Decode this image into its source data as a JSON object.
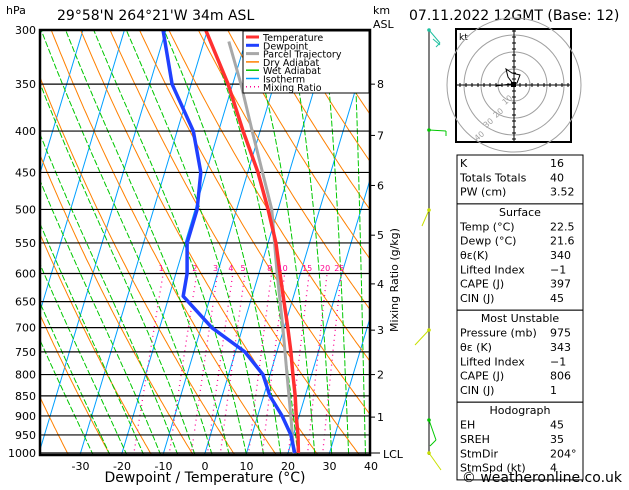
{
  "header": {
    "hpa_label": "hPa",
    "location": "29°58'N  264°21'W  34m  ASL",
    "km_label": "km",
    "asl_label": "ASL",
    "datetime": "07.11.2022  12GMT  (Base: 12)"
  },
  "legend": [
    {
      "label": "Temperature",
      "color": "#ff3030"
    },
    {
      "label": "Dewpoint",
      "color": "#2040ff"
    },
    {
      "label": "Parcel Trajectory",
      "color": "#a8a8a8"
    },
    {
      "label": "Dry Adiabat",
      "color": "#ff8000"
    },
    {
      "label": "Wet Adiabat",
      "color": "#00c800"
    },
    {
      "label": "Isotherm",
      "color": "#00a0ff"
    },
    {
      "label": "Mixing Ratio",
      "color": "#ff0090"
    }
  ],
  "chart_data": {
    "type": "line",
    "subtype": "skew-t log-p",
    "xlabel": "Dewpoint / Temperature (°C)",
    "ylabel": "hPa",
    "right_label": "Mixing Ratio (g/kg)",
    "xticks": [
      -30,
      -20,
      -10,
      0,
      10,
      20,
      30,
      40
    ],
    "xlim": [
      -40,
      40
    ],
    "ylim": [
      1000,
      300
    ],
    "pressure_ticks": [
      300,
      350,
      400,
      450,
      500,
      550,
      600,
      650,
      700,
      750,
      800,
      850,
      900,
      950,
      1000
    ],
    "km_ticks": [
      {
        "label": "1",
        "p": 903
      },
      {
        "label": "2",
        "p": 800
      },
      {
        "label": "3",
        "p": 705
      },
      {
        "label": "4",
        "p": 618
      },
      {
        "label": "5",
        "p": 538
      },
      {
        "label": "6",
        "p": 467
      },
      {
        "label": "7",
        "p": 405
      },
      {
        "label": "8",
        "p": 350
      }
    ],
    "lcl_label": "LCL",
    "mixing_ratio_labels": [
      "1",
      "2",
      "3",
      "4",
      "5",
      "8",
      "10",
      "15",
      "20",
      "25"
    ],
    "mixing_ratio_values": [
      1,
      2,
      3,
      4,
      5,
      8,
      10,
      15,
      20,
      25
    ],
    "series": [
      {
        "name": "Temperature",
        "color": "#ff3030",
        "p": [
          1000,
          950,
          900,
          850,
          800,
          750,
          700,
          650,
          600,
          550,
          500,
          450,
          400,
          350,
          300
        ],
        "t": [
          22.5,
          21.1,
          19.3,
          17.6,
          15.5,
          13.4,
          10.9,
          8.1,
          5.1,
          1.9,
          -2.4,
          -7.5,
          -14.1,
          -21.1,
          -30.4
        ]
      },
      {
        "name": "Dewpoint",
        "color": "#2040ff",
        "p": [
          1000,
          950,
          900,
          850,
          800,
          750,
          700,
          640,
          600,
          550,
          500,
          450,
          400,
          350,
          300
        ],
        "t": [
          21.6,
          19.4,
          15.9,
          11.5,
          8.3,
          2.3,
          -7.4,
          -16.6,
          -17.3,
          -19.5,
          -19.5,
          -21.3,
          -26.1,
          -34.6,
          -40.7
        ]
      },
      {
        "name": "Parcel Trajectory",
        "color": "#a8a8a8",
        "p": [
          1000,
          900,
          800,
          700,
          600,
          500,
          400,
          350,
          310
        ],
        "t": [
          21.4,
          18.0,
          14.1,
          9.7,
          4.4,
          -1.5,
          -11.9,
          -18.0,
          -24.0
        ]
      }
    ]
  },
  "hodograph": {
    "unit_label": "kt",
    "ring_labels": [
      "10",
      "20",
      "30",
      "40"
    ]
  },
  "indices": {
    "rows": [
      {
        "label": "K",
        "value": "16"
      },
      {
        "label": "Totals Totals",
        "value": "40"
      },
      {
        "label": "PW (cm)",
        "value": "3.52"
      }
    ]
  },
  "surface": {
    "title": "Surface",
    "rows": [
      {
        "label": "Temp (°C)",
        "value": "22.5"
      },
      {
        "label": "Dewp (°C)",
        "value": "21.6"
      },
      {
        "label": "θε(K)",
        "value": "340"
      },
      {
        "label": "Lifted Index",
        "value": "−1"
      },
      {
        "label": "CAPE (J)",
        "value": "397"
      },
      {
        "label": "CIN (J)",
        "value": "45"
      }
    ]
  },
  "most_unstable": {
    "title": "Most Unstable",
    "rows": [
      {
        "label": "Pressure (mb)",
        "value": "975"
      },
      {
        "label": "θε (K)",
        "value": "343"
      },
      {
        "label": "Lifted Index",
        "value": "−1"
      },
      {
        "label": "CAPE (J)",
        "value": "806"
      },
      {
        "label": "CIN (J)",
        "value": "1"
      }
    ]
  },
  "hodo_table": {
    "title": "Hodograph",
    "rows": [
      {
        "label": "EH",
        "value": "45"
      },
      {
        "label": "SREH",
        "value": "35"
      },
      {
        "label": "StmDir",
        "value": "204°"
      },
      {
        "label": "StmSpd (kt)",
        "value": "4"
      }
    ]
  },
  "footer": {
    "copyright": "© weatheronline.co.uk"
  }
}
